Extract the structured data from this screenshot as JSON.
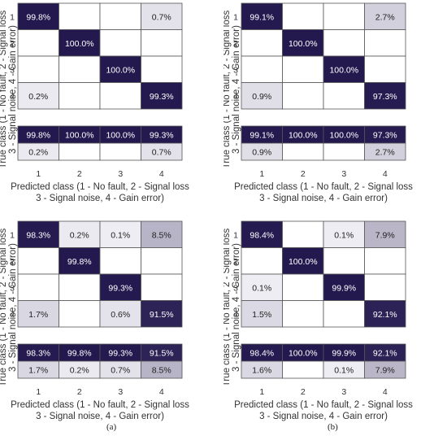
{
  "chart_data": [
    {
      "type": "heatmap",
      "xlabel": [
        "Predicted class (1 - No fault, 2 - Signal loss",
        "3 - Signal noise, 4 - Gain error)"
      ],
      "ylabel": [
        "True class (1 - No fault, 2 - Signal loss",
        "3 - Signal noise, 4 - Gain error)"
      ],
      "x_ticks": [
        "1",
        "2",
        "3",
        "4"
      ],
      "y_ticks": [
        "1",
        "2",
        "3",
        "4"
      ],
      "matrix": [
        [
          99.8,
          null,
          null,
          0.7
        ],
        [
          null,
          100.0,
          null,
          null
        ],
        [
          null,
          null,
          100.0,
          null
        ],
        [
          0.2,
          null,
          null,
          99.3
        ]
      ],
      "precision": [
        99.8,
        100.0,
        100.0,
        99.3
      ],
      "false_discovery": [
        0.2,
        null,
        null,
        0.7
      ]
    },
    {
      "type": "heatmap",
      "xlabel": [
        "Predicted class (1 - No fault, 2 - Signal loss",
        "3 - Signal noise, 4 - Gain error)"
      ],
      "ylabel": [
        "True class (1 - No fault, 2 - Signal loss",
        "3 - Signal noise, 4 - Gain error)"
      ],
      "x_ticks": [
        "1",
        "2",
        "3",
        "4"
      ],
      "y_ticks": [
        "1",
        "2",
        "3",
        "4"
      ],
      "matrix": [
        [
          99.1,
          null,
          null,
          2.7
        ],
        [
          null,
          100.0,
          null,
          null
        ],
        [
          null,
          null,
          100.0,
          null
        ],
        [
          0.9,
          null,
          null,
          97.3
        ]
      ],
      "precision": [
        99.1,
        100.0,
        100.0,
        97.3
      ],
      "false_discovery": [
        0.9,
        null,
        null,
        2.7
      ]
    },
    {
      "type": "heatmap",
      "xlabel": [
        "Predicted class (1 - No fault, 2 - Signal loss",
        "3 - Signal noise, 4 - Gain error)"
      ],
      "ylabel": [
        "True class (1 - No fault, 2 - Signal loss",
        "3 - Signal noise, 4 - Gain error)"
      ],
      "x_ticks": [
        "1",
        "2",
        "3",
        "4"
      ],
      "y_ticks": [
        "1",
        "2",
        "3",
        "4"
      ],
      "matrix": [
        [
          98.3,
          0.2,
          0.1,
          8.5
        ],
        [
          null,
          99.8,
          null,
          null
        ],
        [
          null,
          null,
          99.3,
          null
        ],
        [
          1.7,
          null,
          0.6,
          91.5
        ]
      ],
      "precision": [
        98.3,
        99.8,
        99.3,
        91.5
      ],
      "false_discovery": [
        1.7,
        0.2,
        0.7,
        8.5
      ]
    },
    {
      "type": "heatmap",
      "xlabel": [
        "Predicted class (1 - No fault, 2 - Signal loss",
        "3 - Signal noise, 4 - Gain error)"
      ],
      "ylabel": [
        "True class (1 - No fault, 2 - Signal loss",
        "3 - Signal noise, 4 - Gain error)"
      ],
      "x_ticks": [
        "1",
        "2",
        "3",
        "4"
      ],
      "y_ticks": [
        "1",
        "2",
        "3",
        "4"
      ],
      "matrix": [
        [
          98.4,
          null,
          0.1,
          7.9
        ],
        [
          null,
          100.0,
          null,
          null
        ],
        [
          0.1,
          null,
          99.9,
          null
        ],
        [
          1.5,
          null,
          null,
          92.1
        ]
      ],
      "precision": [
        98.4,
        100.0,
        99.9,
        92.1
      ],
      "false_discovery": [
        1.6,
        null,
        0.1,
        7.9
      ]
    }
  ],
  "subfigure_labels": {
    "a": "(a)",
    "b": "(b)"
  },
  "colors": {
    "high": "#24194f",
    "low": "#ffffff",
    "border": "#555555"
  }
}
